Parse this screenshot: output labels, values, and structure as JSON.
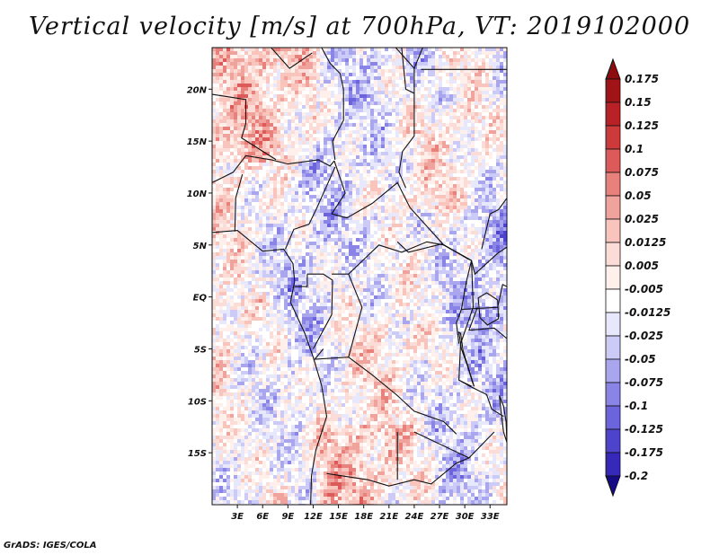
{
  "title": "Vertical velocity [m/s] at 700hPa, VT: 2019102000",
  "footer": "GrADS: IGES/COLA",
  "map": {
    "lon_range": [
      0,
      35
    ],
    "lat_range": [
      -20,
      24
    ],
    "lat_ticks": [
      {
        "value": 20,
        "label": "20N"
      },
      {
        "value": 15,
        "label": "15N"
      },
      {
        "value": 10,
        "label": "10N"
      },
      {
        "value": 5,
        "label": "5N"
      },
      {
        "value": 0,
        "label": "EQ"
      },
      {
        "value": -5,
        "label": "5S"
      },
      {
        "value": -10,
        "label": "10S"
      },
      {
        "value": -15,
        "label": "15S"
      }
    ],
    "lon_ticks": [
      {
        "value": 3,
        "label": "3E"
      },
      {
        "value": 6,
        "label": "6E"
      },
      {
        "value": 9,
        "label": "9E"
      },
      {
        "value": 12,
        "label": "12E"
      },
      {
        "value": 15,
        "label": "15E"
      },
      {
        "value": 18,
        "label": "18E"
      },
      {
        "value": 21,
        "label": "21E"
      },
      {
        "value": 24,
        "label": "24E"
      },
      {
        "value": 27,
        "label": "27E"
      },
      {
        "value": 30,
        "label": "30E"
      },
      {
        "value": 33,
        "label": "33E"
      }
    ]
  },
  "colorbar": {
    "levels": [
      {
        "label": "0.175",
        "color": "#a01418"
      },
      {
        "label": "0.15",
        "color": "#b82226"
      },
      {
        "label": "0.125",
        "color": "#cc3a3c"
      },
      {
        "label": "0.1",
        "color": "#dc5a5a"
      },
      {
        "label": "0.075",
        "color": "#e8807c"
      },
      {
        "label": "0.05",
        "color": "#f0a29c"
      },
      {
        "label": "0.025",
        "color": "#f8c4bc"
      },
      {
        "label": "0.0125",
        "color": "#fcdcd6"
      },
      {
        "label": "0.005",
        "color": "#fff0ec"
      },
      {
        "label": "-0.005",
        "color": "#ffffff"
      },
      {
        "label": "-0.0125",
        "color": "#e8e8fc"
      },
      {
        "label": "-0.025",
        "color": "#cccaf6"
      },
      {
        "label": "-0.05",
        "color": "#aaa6ee"
      },
      {
        "label": "-0.075",
        "color": "#8a84e6"
      },
      {
        "label": "-0.1",
        "color": "#6c64dc"
      },
      {
        "label": "-0.125",
        "color": "#4e44cc"
      },
      {
        "label": "-0.175",
        "color": "#3628b8"
      },
      {
        "label": "-0.2",
        "color": "#20129e"
      }
    ],
    "top_color": "#8c0c10",
    "bottom_color": "#160a86"
  }
}
